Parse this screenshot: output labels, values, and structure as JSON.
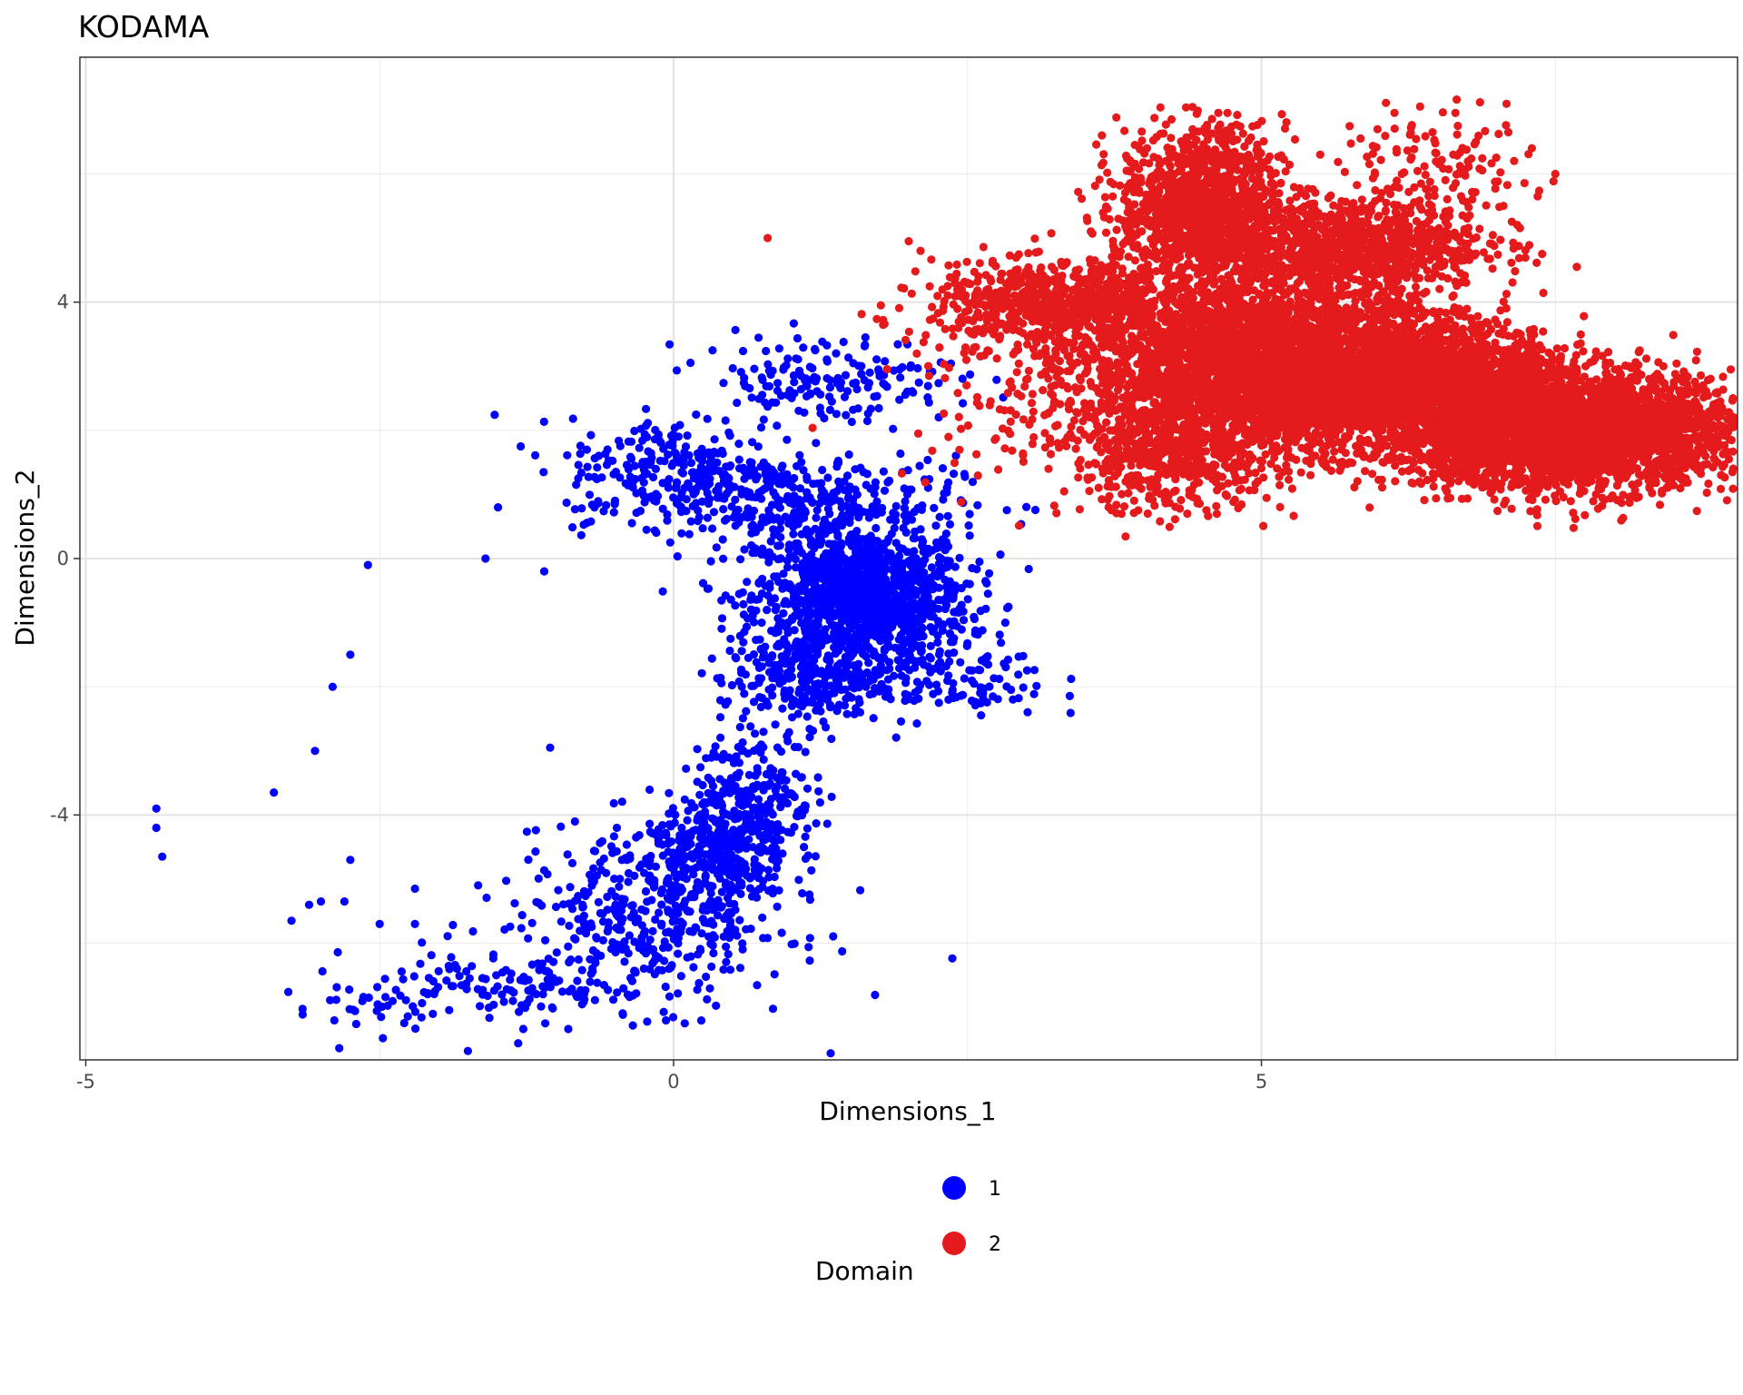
{
  "chart_data": {
    "type": "scatter",
    "title": "KODAMA",
    "xlabel": "Dimensions_1",
    "ylabel": "Dimensions_2",
    "xlim": [
      -5.05,
      9.05
    ],
    "ylim": [
      -7.82,
      7.82
    ],
    "x_ticks": [
      -5,
      0,
      5
    ],
    "x_tick_labels": [
      "-5",
      "0",
      "5"
    ],
    "y_ticks": [
      -4,
      0,
      4
    ],
    "y_tick_labels": [
      "-4",
      "0",
      "4"
    ],
    "grid": true,
    "legend_position": "bottom",
    "legend": {
      "title": "Domain",
      "entries": [
        {
          "label": "1",
          "color": "#0000FF"
        },
        {
          "label": "2",
          "color": "#E41A1C"
        }
      ]
    },
    "series": [
      {
        "name": "1",
        "color": "#0000FF",
        "clusters": [
          {
            "cx": 1.6,
            "cy": -0.6,
            "sx": 0.45,
            "sy": 0.55,
            "n": 1300
          },
          {
            "cx": 1.0,
            "cy": 0.9,
            "sx": 0.7,
            "sy": 0.35,
            "n": 320
          },
          {
            "cx": 0.0,
            "cy": 1.4,
            "sx": 0.45,
            "sy": 0.4,
            "n": 220
          },
          {
            "cx": 1.3,
            "cy": 2.8,
            "sx": 0.55,
            "sy": 0.35,
            "n": 170
          },
          {
            "cx": 1.1,
            "cy": -1.9,
            "sx": 0.35,
            "sy": 0.35,
            "n": 240
          },
          {
            "cx": 2.3,
            "cy": -1.9,
            "sx": 0.45,
            "sy": 0.3,
            "n": 110
          },
          {
            "cx": 0.7,
            "cy": -3.6,
            "sx": 0.25,
            "sy": 0.45,
            "n": 200
          },
          {
            "cx": 0.4,
            "cy": -4.6,
            "sx": 0.3,
            "sy": 0.45,
            "n": 320
          },
          {
            "cx": -0.2,
            "cy": -5.6,
            "sx": 0.6,
            "sy": 0.7,
            "n": 420
          },
          {
            "cx": -1.5,
            "cy": -6.7,
            "sx": 0.6,
            "sy": 0.35,
            "n": 130
          },
          {
            "cx": -2.6,
            "cy": -7.0,
            "sx": 0.3,
            "sy": 0.2,
            "n": 20
          }
        ],
        "points": [
          [
            -4.4,
            -3.9
          ],
          [
            -4.4,
            -4.2
          ],
          [
            -4.35,
            -4.65
          ],
          [
            -3.4,
            -3.65
          ],
          [
            -3.25,
            -5.65
          ],
          [
            -3.1,
            -5.4
          ],
          [
            -3.0,
            -5.35
          ],
          [
            -3.05,
            -3.0
          ],
          [
            -2.9,
            -2.0
          ],
          [
            -2.6,
            -0.1
          ],
          [
            -1.6,
            0.0
          ],
          [
            -2.75,
            -1.5
          ],
          [
            -2.8,
            -5.35
          ],
          [
            -2.75,
            -4.7
          ],
          [
            -2.5,
            -5.7
          ],
          [
            -2.2,
            -5.7
          ],
          [
            -2.2,
            -5.15
          ],
          [
            -1.3,
            1.75
          ],
          [
            -1.1,
            -0.2
          ],
          [
            -1.05,
            -2.95
          ]
        ]
      },
      {
        "name": "2",
        "color": "#E41A1C",
        "clusters": [
          {
            "cx": 5.1,
            "cy": 3.0,
            "sx": 0.8,
            "sy": 0.65,
            "n": 4200
          },
          {
            "cx": 7.6,
            "cy": 2.0,
            "sx": 0.75,
            "sy": 0.45,
            "n": 3400
          },
          {
            "cx": 4.5,
            "cy": 5.5,
            "sx": 0.35,
            "sy": 0.6,
            "n": 1200
          },
          {
            "cx": 5.7,
            "cy": 4.9,
            "sx": 0.6,
            "sy": 0.35,
            "n": 900
          },
          {
            "cx": 3.3,
            "cy": 4.0,
            "sx": 0.55,
            "sy": 0.3,
            "n": 700
          },
          {
            "cx": 6.6,
            "cy": 2.8,
            "sx": 0.45,
            "sy": 0.4,
            "n": 1200
          },
          {
            "cx": 4.2,
            "cy": 1.6,
            "sx": 0.45,
            "sy": 0.45,
            "n": 500
          },
          {
            "cx": 6.5,
            "cy": 6.0,
            "sx": 0.4,
            "sy": 0.45,
            "n": 140
          },
          {
            "cx": 2.9,
            "cy": 2.8,
            "sx": 0.55,
            "sy": 0.8,
            "n": 130
          }
        ],
        "points": [
          [
            0.8,
            5.0
          ],
          [
            2.0,
            4.95
          ],
          [
            2.1,
            4.8
          ],
          [
            6.35,
            7.05
          ],
          [
            6.65,
            6.95
          ],
          [
            7.1,
            6.65
          ],
          [
            7.3,
            6.4
          ],
          [
            7.5,
            6.0
          ],
          [
            7.35,
            5.65
          ],
          [
            5.5,
            6.3
          ]
        ]
      }
    ]
  }
}
